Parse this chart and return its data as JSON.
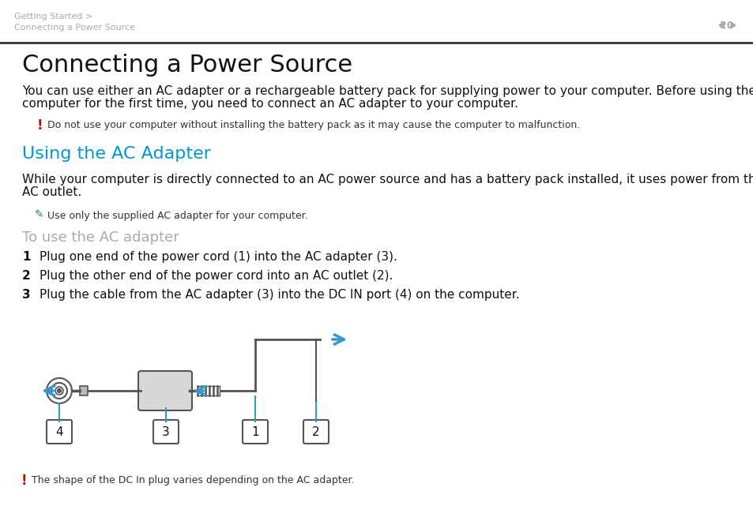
{
  "bg_color": "#ffffff",
  "header_breadcrumb_line1": "Getting Started >",
  "header_breadcrumb_line2": "Connecting a Power Source",
  "header_page_num": "20",
  "header_color": "#aaaaaa",
  "title": "Connecting a Power Source",
  "title_fontsize": 22,
  "body_text1_line1": "You can use either an AC adapter or a rechargeable battery pack for supplying power to your computer. Before using the",
  "body_text1_line2": "computer for the first time, you need to connect an AC adapter to your computer.",
  "body_fontsize": 11,
  "warning_text": "Do not use your computer without installing the battery pack as it may cause the computer to malfunction.",
  "warning_fontsize": 9,
  "warning_color": "#cc0000",
  "section_title": "Using the AC Adapter",
  "section_title_color": "#0099cc",
  "section_title_fontsize": 16,
  "body_text2_line1": "While your computer is directly connected to an AC power source and has a battery pack installed, it uses power from the",
  "body_text2_line2": "AC outlet.",
  "note_text": "Use only the supplied AC adapter for your computer.",
  "note_fontsize": 9,
  "subsection_title": "To use the AC adapter",
  "subsection_color": "#aaaaaa",
  "subsection_fontsize": 13,
  "step1": "Plug one end of the power cord (1) into the AC adapter (3).",
  "step2": "Plug the other end of the power cord into an AC outlet (2).",
  "step3": "Plug the cable from the AC adapter (3) into the DC IN port (4) on the computer.",
  "step_fontsize": 11,
  "footer_warning": "The shape of the DC In plug varies depending on the AC adapter.",
  "footer_warning_fontsize": 9,
  "arrow_color": "#3399cc",
  "diagram_color": "#555555"
}
